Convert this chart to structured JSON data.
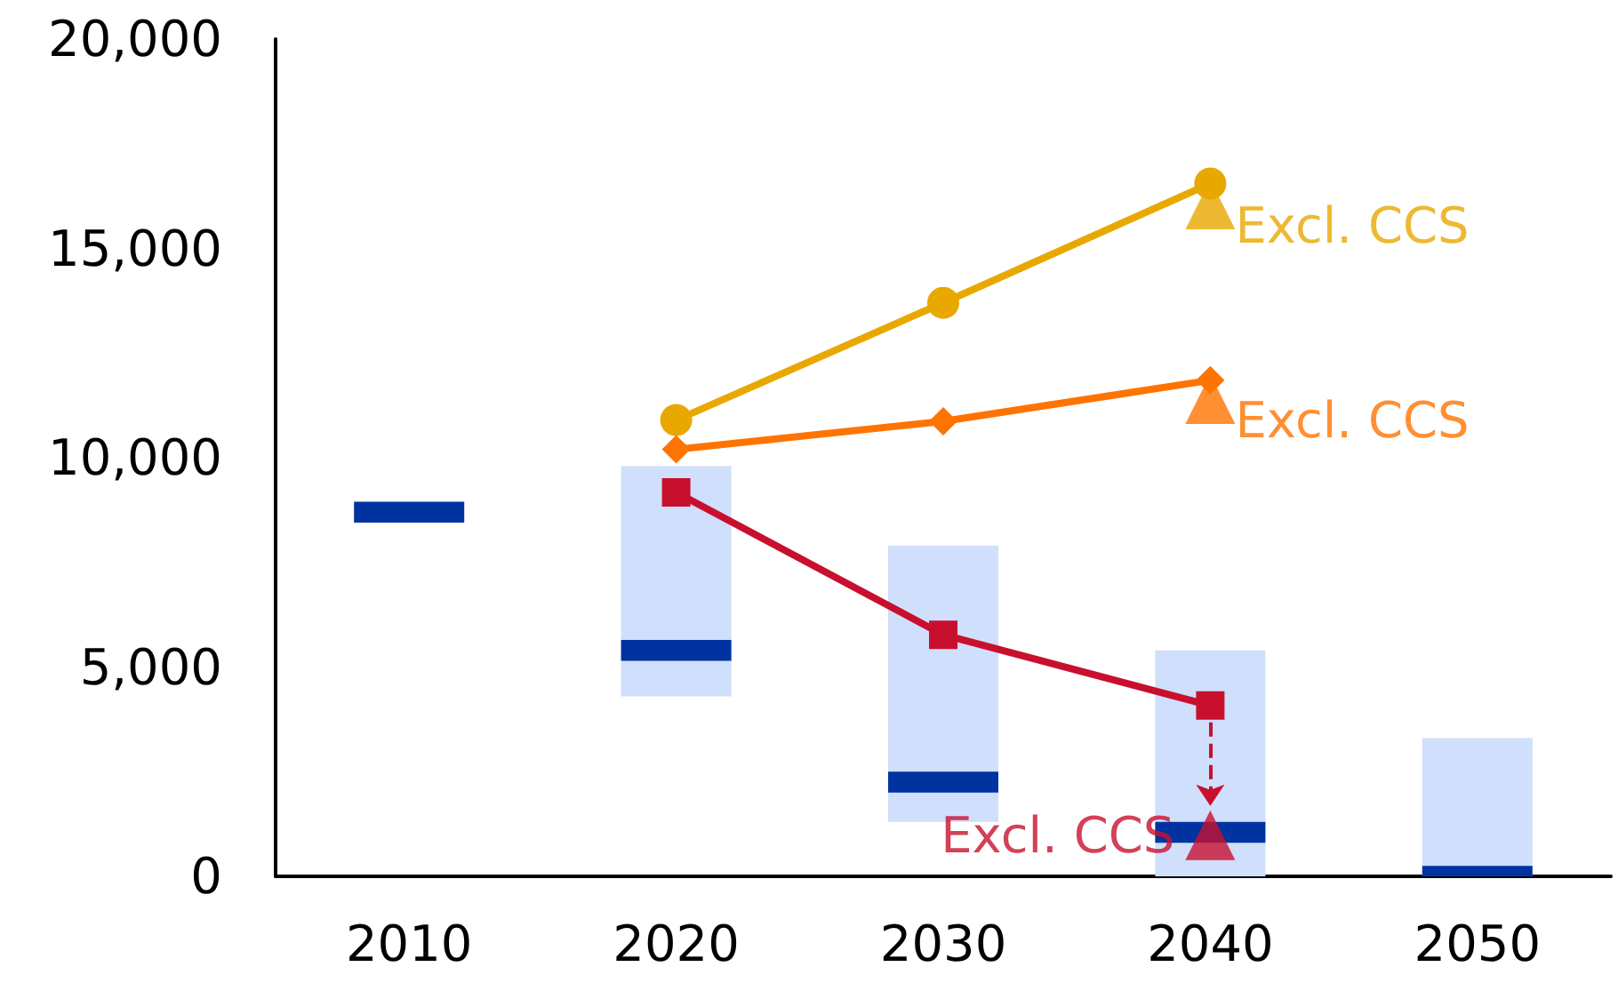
{
  "chart_data": {
    "type": "line",
    "categories": [
      "2010",
      "2020",
      "2030",
      "2040",
      "2050"
    ],
    "series": [
      {
        "type": "bar",
        "color": "#cfdffc",
        "base": [
          null,
          4300,
          1300,
          0,
          0
        ],
        "values": [
          null,
          5500,
          6600,
          5400,
          3300
        ]
      },
      {
        "type": "bar",
        "color": "#0033a0",
        "base": [
          8450,
          5150,
          2000,
          800,
          0
        ],
        "values": [
          500,
          500,
          500,
          500,
          250
        ]
      },
      {
        "color": "#e8a800",
        "marker": "circle",
        "values": [
          null,
          10900,
          13700,
          16550,
          null
        ]
      },
      {
        "color": "#ff7300",
        "marker": "diamond",
        "values": [
          null,
          10200,
          10870,
          11850,
          null
        ]
      },
      {
        "color": "#c8102e",
        "marker": "square",
        "values": [
          null,
          9170,
          5770,
          4080,
          null
        ]
      },
      {
        "type": "scatter",
        "color": "#e8a800",
        "marker": "triangle",
        "values": [
          null,
          null,
          null,
          16050,
          null
        ]
      },
      {
        "type": "scatter",
        "color": "#ff7300",
        "marker": "triangle",
        "values": [
          null,
          null,
          null,
          11400,
          null
        ]
      },
      {
        "type": "scatter",
        "color": "#c8102e",
        "marker": "triangle",
        "values": [
          null,
          null,
          null,
          980,
          null
        ]
      }
    ],
    "ylim": [
      0,
      20000
    ],
    "yticks": [
      {
        "value": 0,
        "label": "0"
      },
      {
        "value": 5000,
        "label": "5,000"
      },
      {
        "value": 10000,
        "label": "10,000"
      },
      {
        "value": 15000,
        "label": "15,000"
      },
      {
        "value": 20000,
        "label": "20,000"
      }
    ],
    "annotations": [
      {
        "text": "Excl. CCS",
        "x": "2040",
        "y": 16050
      },
      {
        "text": "Excl. CCS",
        "x": "2040",
        "y": 11400
      },
      {
        "text": "Excl. CCS",
        "x": "2040",
        "y": 980
      }
    ],
    "grid": false
  }
}
